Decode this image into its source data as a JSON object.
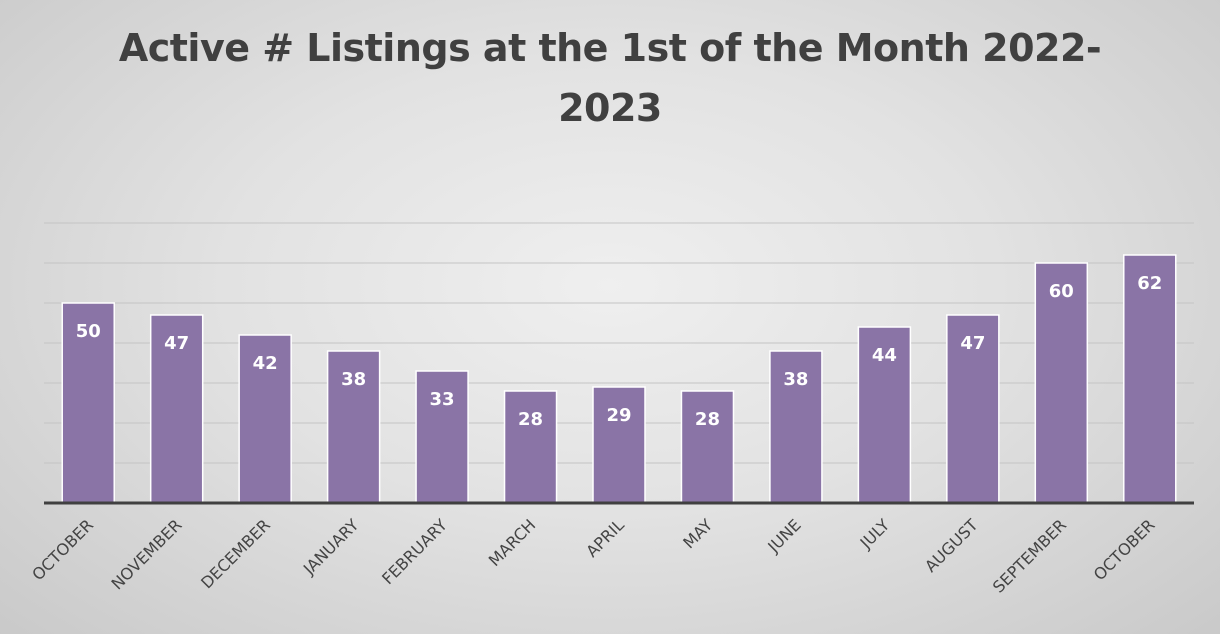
{
  "chart_data": {
    "type": "bar",
    "title": "Active # Listings at the 1st of the Month 2022-2023",
    "categories": [
      "OCTOBER",
      "NOVEMBER",
      "DECEMBER",
      "JANUARY",
      "FEBRUARY",
      "MARCH",
      "APRIL",
      "MAY",
      "JUNE",
      "JULY",
      "AUGUST",
      "SEPTEMBER",
      "OCTOBER"
    ],
    "values": [
      50,
      47,
      42,
      38,
      33,
      28,
      29,
      28,
      38,
      44,
      47,
      60,
      62
    ],
    "xlabel": "",
    "ylabel": "",
    "ylim": [
      0,
      70
    ],
    "grid": true,
    "legend": "none",
    "colors": {
      "bar": "#8a74a6",
      "bar_border": "#ffffff",
      "label": "#ffffff",
      "title": "#404040"
    }
  }
}
